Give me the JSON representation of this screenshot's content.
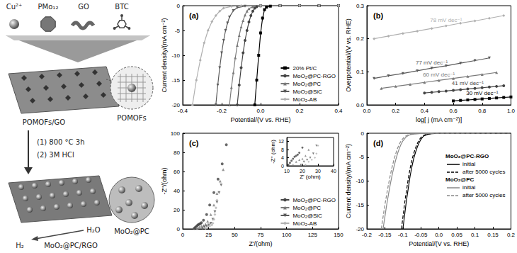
{
  "diagram": {
    "reactants": [
      {
        "label": "Cu²⁺"
      },
      {
        "label": "PMo₁₂"
      },
      {
        "label": "GO"
      },
      {
        "label": "BTC"
      }
    ],
    "intermediate": {
      "label": "POMOFs/GO",
      "zoom_label": "POMOFs"
    },
    "steps": [
      "(1) 800 °C 3h",
      "(2) 3M HCl"
    ],
    "product": {
      "label": "MoO₂@PC/RGO",
      "zoom_label": "MoO₂@PC"
    },
    "reaction": {
      "reactant": "H₂O",
      "product": "H₂"
    }
  },
  "chart_data": [
    {
      "type": "line",
      "title": "(a)",
      "xlabel": "Potential/(V vs. RHE)",
      "ylabel": "Current density/(mA cm⁻²)",
      "xlim": [
        -0.4,
        0.4
      ],
      "xticks": [
        -0.4,
        -0.2,
        {
          "value": 0,
          "label": "0.0"
        },
        0.2,
        0.4
      ],
      "ylim": [
        -20,
        0
      ],
      "yticks": [
        -20,
        -15,
        -10,
        -5,
        0
      ],
      "grid": false,
      "legend": "lower right",
      "series": [
        {
          "name": "20% Pt/C",
          "color": "#000000",
          "marker": "square",
          "x": [
            -0.03,
            -0.02,
            -0.01,
            0.0,
            0.01,
            0.02,
            0.03,
            0.05,
            0.1,
            0.2,
            0.3,
            0.4
          ],
          "values": [
            -20,
            -15,
            -10,
            -5.5,
            -2.5,
            -0.8,
            -0.3,
            -0.1,
            0,
            0,
            0,
            0
          ]
        },
        {
          "name": "MoO₂@PC-RGO",
          "color": "#444444",
          "marker": "circle",
          "x": [
            -0.12,
            -0.11,
            -0.1,
            -0.09,
            -0.08,
            -0.07,
            -0.06,
            -0.05,
            -0.04,
            -0.03,
            -0.02,
            0.0,
            0.1,
            0.2,
            0.3,
            0.4
          ],
          "values": [
            -20,
            -16,
            -12.5,
            -9.5,
            -7,
            -5,
            -3.3,
            -2,
            -1.1,
            -0.5,
            -0.2,
            -0.05,
            0,
            0,
            0,
            0
          ]
        },
        {
          "name": "MoO₂@PC",
          "color": "#7a7a7a",
          "marker": "triangle",
          "x": [
            -0.16,
            -0.15,
            -0.14,
            -0.13,
            -0.12,
            -0.11,
            -0.1,
            -0.09,
            -0.08,
            -0.07,
            -0.06,
            -0.04,
            0.0,
            0.1,
            0.2,
            0.3,
            0.4
          ],
          "values": [
            -20,
            -16.5,
            -13.5,
            -10.5,
            -8,
            -6,
            -4.3,
            -3,
            -1.9,
            -1.1,
            -0.6,
            -0.2,
            -0.05,
            0,
            0,
            0,
            0
          ]
        },
        {
          "name": "MoO₂@SiC",
          "color": "#5a5a5a",
          "marker": "down-triangle",
          "x": [
            -0.23,
            -0.22,
            -0.21,
            -0.2,
            -0.19,
            -0.18,
            -0.17,
            -0.16,
            -0.14,
            -0.12,
            -0.08,
            0.0,
            0.1,
            0.2,
            0.3,
            0.4
          ],
          "values": [
            -20,
            -16,
            -12.5,
            -9.5,
            -7,
            -5,
            -3.5,
            -2.3,
            -1,
            -0.4,
            -0.1,
            0,
            0,
            0,
            0,
            0
          ]
        },
        {
          "name": "MoO₂-AB",
          "color": "#b0b0b0",
          "marker": "diamond",
          "x": [
            -0.35,
            -0.33,
            -0.31,
            -0.29,
            -0.27,
            -0.25,
            -0.23,
            -0.21,
            -0.19,
            -0.15,
            -0.1,
            0.0,
            0.1,
            0.2,
            0.3,
            0.4
          ],
          "values": [
            -20,
            -15,
            -11,
            -7.5,
            -5,
            -3.2,
            -2,
            -1.1,
            -0.5,
            -0.15,
            0,
            0,
            0,
            0,
            0,
            0
          ]
        }
      ]
    },
    {
      "type": "line",
      "title": "(b)",
      "xlabel": "log[ j (mA cm⁻²)]",
      "ylabel": "Overpotential/(V vs. RHE)",
      "xlim": [
        0,
        1
      ],
      "xticks": [
        {
          "value": 0,
          "label": "0.0"
        },
        0.2,
        0.4,
        0.6,
        0.8,
        {
          "value": 1,
          "label": "1.0"
        }
      ],
      "ylim": [
        0,
        0.3
      ],
      "yticks": [
        {
          "value": 0,
          "label": "0.0"
        },
        0.1,
        0.2,
        0.3
      ],
      "grid": false,
      "series": [
        {
          "name": "20% Pt/C",
          "color": "#000000",
          "marker": "square",
          "annotation": "30 mV dec⁻¹",
          "x": [
            0.6,
            0.65,
            0.7,
            0.75,
            0.8,
            0.85,
            0.9,
            0.95,
            1.0
          ],
          "values": [
            0.012,
            0.0135,
            0.015,
            0.0165,
            0.018,
            0.0195,
            0.021,
            0.0225,
            0.024
          ]
        },
        {
          "name": "MoO₂@PC-RGO",
          "color": "#444444",
          "marker": "circle",
          "annotation": "41 mV dec⁻¹",
          "x": [
            0.4,
            0.45,
            0.5,
            0.55,
            0.6,
            0.65,
            0.7,
            0.75,
            0.8,
            0.85,
            0.9,
            0.95
          ],
          "values": [
            0.036,
            0.038,
            0.04,
            0.042,
            0.044,
            0.046,
            0.048,
            0.05,
            0.052,
            0.054,
            0.056,
            0.058
          ]
        },
        {
          "name": "MoO₂@PC",
          "color": "#7a7a7a",
          "marker": "triangle",
          "annotation": "60 mV dec⁻¹",
          "x": [
            0.1,
            0.2,
            0.3,
            0.4,
            0.5,
            0.6,
            0.7,
            0.8,
            0.9
          ],
          "values": [
            0.05,
            0.056,
            0.062,
            0.068,
            0.074,
            0.08,
            0.086,
            0.092,
            0.098
          ]
        },
        {
          "name": "MoO₂@SiC",
          "color": "#5a5a5a",
          "marker": "down-triangle",
          "annotation": "77 mV dec⁻¹",
          "x": [
            0.05,
            0.15,
            0.25,
            0.35,
            0.45,
            0.55,
            0.65,
            0.75,
            0.85
          ],
          "values": [
            0.08,
            0.088,
            0.095,
            0.103,
            0.111,
            0.118,
            0.126,
            0.134,
            0.142
          ]
        },
        {
          "name": "MoO₂-AB",
          "color": "#b0b0b0",
          "marker": "diamond",
          "annotation": "78 mV dec⁻¹",
          "x": [
            0.05,
            0.15,
            0.25,
            0.35,
            0.45,
            0.55,
            0.65,
            0.75,
            0.85,
            0.95
          ],
          "values": [
            0.2,
            0.208,
            0.216,
            0.223,
            0.231,
            0.239,
            0.247,
            0.254,
            0.262,
            0.27
          ]
        }
      ]
    },
    {
      "type": "scatter",
      "title": "(c)",
      "xlabel": "Z'/(ohm)",
      "ylabel": "-Z''/(ohm)",
      "xlim": [
        0,
        150
      ],
      "xticks": [
        0,
        25,
        50,
        75,
        100,
        125,
        150
      ],
      "ylim": [
        0,
        100
      ],
      "yticks": [
        0,
        20,
        40,
        60,
        80,
        100
      ],
      "grid": false,
      "legend": "lower right",
      "inset": {
        "xlabel": "Z' (ohm)",
        "ylabel": "-Z'' (ohm)",
        "xlim": [
          10,
          40
        ],
        "xticks": [
          10,
          20,
          30,
          40
        ],
        "ylim": [
          0,
          14
        ],
        "yticks": [
          0,
          4,
          8,
          12
        ]
      },
      "series": [
        {
          "name": "MoO₂@PC-RGO",
          "color": "#444444",
          "marker": "circle",
          "x": [
            11,
            12,
            13,
            14,
            15,
            16,
            17,
            18,
            20,
            23,
            26,
            30,
            34,
            38,
            42
          ],
          "values": [
            0.5,
            1.5,
            2.5,
            3.5,
            4.5,
            5,
            5.5,
            6.5,
            9,
            15,
            25,
            38,
            52,
            68,
            88
          ]
        },
        {
          "name": "MoO₂@PC",
          "color": "#7a7a7a",
          "marker": "triangle",
          "x": [
            14,
            16,
            18,
            20,
            22,
            24,
            27,
            30,
            33,
            36,
            39
          ],
          "values": [
            0.5,
            2,
            3,
            3.5,
            5,
            8,
            15,
            25,
            37,
            50,
            62
          ]
        },
        {
          "name": "MoO₂@SiC",
          "color": "#5a5a5a",
          "marker": "down-triangle",
          "x": [
            19,
            21,
            23,
            25,
            27,
            29,
            31,
            33,
            35,
            37
          ],
          "values": [
            0.5,
            2,
            3,
            4,
            6,
            10,
            18,
            28,
            38,
            46
          ]
        },
        {
          "name": "MoO₂-AB",
          "color": "#b0b0b0",
          "marker": "diamond",
          "x": [
            22,
            24,
            26,
            28,
            29,
            30,
            31,
            32,
            33
          ],
          "values": [
            0.5,
            2,
            3,
            4,
            6,
            10,
            15,
            22,
            30
          ]
        }
      ]
    },
    {
      "type": "line",
      "title": "(d)",
      "xlabel": "Potential/(V vs. RHE)",
      "ylabel": "Current density/(mA cm⁻²)",
      "xlim": [
        -0.2,
        0.2
      ],
      "xticks": [
        -0.2,
        -0.15,
        -0.1,
        -0.05,
        {
          "value": 0,
          "label": "0.0"
        },
        0.05,
        0.1,
        0.15,
        0.2
      ],
      "ylim": [
        -20,
        0
      ],
      "yticks": [
        -20,
        -15,
        -10,
        -5,
        0
      ],
      "grid": false,
      "legend": "upper right",
      "groups": [
        {
          "name": "MoO₂@PC-RGO",
          "series": [
            {
              "name": "initial",
              "color": "#000000",
              "line_style": "solid",
              "x": [
                -0.1,
                -0.095,
                -0.09,
                -0.085,
                -0.08,
                -0.075,
                -0.07,
                -0.065,
                -0.06,
                -0.055,
                -0.05,
                -0.045,
                -0.04,
                -0.03,
                -0.02,
                0.0,
                0.2
              ],
              "values": [
                -20,
                -17,
                -14,
                -11.5,
                -9,
                -7,
                -5.3,
                -4,
                -2.9,
                -2,
                -1.3,
                -0.8,
                -0.5,
                -0.2,
                -0.08,
                -0.02,
                0
              ]
            },
            {
              "name": "after 5000 cycles",
              "color": "#000000",
              "line_style": "dashed",
              "x": [
                -0.104,
                -0.099,
                -0.094,
                -0.089,
                -0.084,
                -0.079,
                -0.074,
                -0.069,
                -0.064,
                -0.059,
                -0.054,
                -0.049,
                -0.044,
                -0.034,
                -0.024,
                0.0,
                0.2
              ],
              "values": [
                -20,
                -17,
                -14,
                -11.5,
                -9,
                -7,
                -5.3,
                -4,
                -2.9,
                -2,
                -1.3,
                -0.8,
                -0.5,
                -0.2,
                -0.08,
                -0.02,
                0
              ]
            }
          ]
        },
        {
          "name": "MoO₂@PC",
          "series": [
            {
              "name": "initial",
              "color": "#888888",
              "line_style": "solid",
              "x": [
                -0.155,
                -0.15,
                -0.145,
                -0.14,
                -0.135,
                -0.13,
                -0.125,
                -0.12,
                -0.115,
                -0.11,
                -0.105,
                -0.1,
                -0.09,
                -0.08,
                -0.06,
                -0.02,
                0.2
              ],
              "values": [
                -20,
                -17.5,
                -15,
                -12.8,
                -10.7,
                -8.8,
                -7.1,
                -5.6,
                -4.3,
                -3.2,
                -2.3,
                -1.6,
                -0.7,
                -0.3,
                -0.1,
                -0.02,
                0
              ]
            },
            {
              "name": "after 5000 cycles",
              "color": "#888888",
              "line_style": "dashed",
              "x": [
                -0.16,
                -0.155,
                -0.15,
                -0.145,
                -0.14,
                -0.135,
                -0.13,
                -0.125,
                -0.12,
                -0.115,
                -0.11,
                -0.105,
                -0.095,
                -0.085,
                -0.065,
                -0.025,
                0.2
              ],
              "values": [
                -20,
                -17.5,
                -15,
                -12.8,
                -10.7,
                -8.8,
                -7.1,
                -5.6,
                -4.3,
                -3.2,
                -2.3,
                -1.6,
                -0.7,
                -0.3,
                -0.1,
                -0.02,
                0
              ]
            }
          ]
        }
      ]
    }
  ]
}
